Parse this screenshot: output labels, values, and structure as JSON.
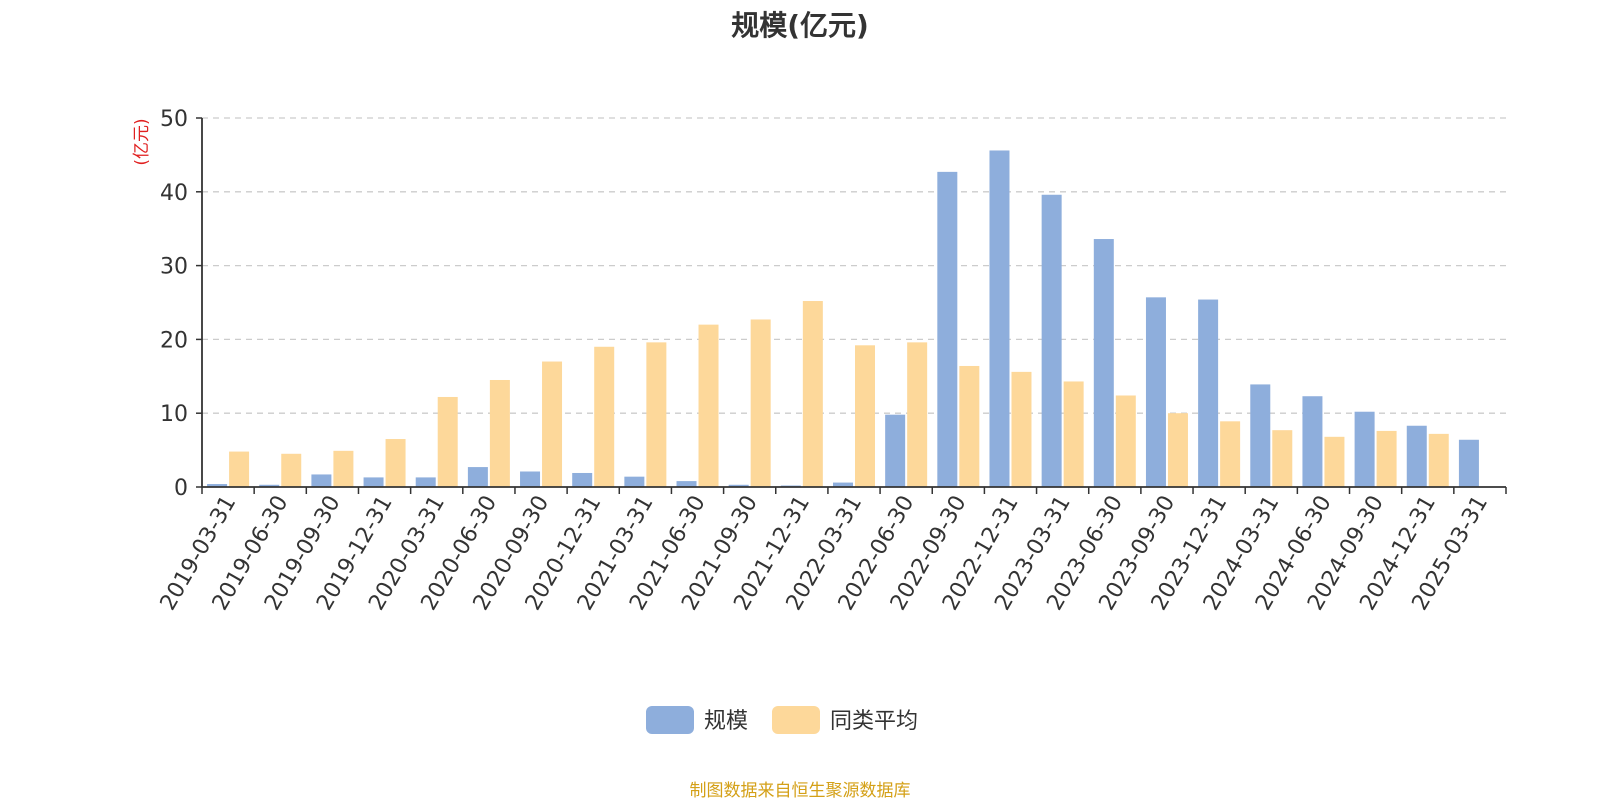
{
  "source_note": "制图数据来自恒生聚源数据库",
  "colors": {
    "series_scale": "#8eaedc",
    "series_avg": "#fdd89a",
    "axis": "#333333",
    "grid": "#cccccc",
    "unit_label": "#e02020",
    "source": "#d4a017"
  },
  "chart_data": {
    "type": "bar",
    "title": "规模(亿元)",
    "ylabel": "(亿元)",
    "ylim": [
      0,
      50
    ],
    "yticks": [
      0,
      10,
      20,
      30,
      40,
      50
    ],
    "grid": true,
    "legend_position": "bottom-center",
    "categories": [
      "2019-03-31",
      "2019-06-30",
      "2019-09-30",
      "2019-12-31",
      "2020-03-31",
      "2020-06-30",
      "2020-09-30",
      "2020-12-31",
      "2021-03-31",
      "2021-06-30",
      "2021-09-30",
      "2021-12-31",
      "2022-03-31",
      "2022-06-30",
      "2022-09-30",
      "2022-12-31",
      "2023-03-31",
      "2023-06-30",
      "2023-09-30",
      "2023-12-31",
      "2024-03-31",
      "2024-06-30",
      "2024-09-30",
      "2024-12-31",
      "2025-03-31"
    ],
    "series": [
      {
        "name": "规模",
        "values": [
          0.4,
          0.3,
          1.7,
          1.3,
          1.3,
          2.7,
          2.1,
          1.9,
          1.4,
          0.8,
          0.3,
          0.2,
          0.6,
          9.8,
          42.7,
          45.6,
          39.6,
          33.6,
          25.7,
          25.4,
          13.9,
          12.3,
          10.2,
          8.3,
          6.4
        ]
      },
      {
        "name": "同类平均",
        "values": [
          4.8,
          4.5,
          4.9,
          6.5,
          12.2,
          14.5,
          17.0,
          19.0,
          19.6,
          22.0,
          22.7,
          25.2,
          19.2,
          19.6,
          16.4,
          15.6,
          14.3,
          12.4,
          10.0,
          8.9,
          7.7,
          6.8,
          7.6,
          7.2,
          null
        ]
      }
    ]
  }
}
